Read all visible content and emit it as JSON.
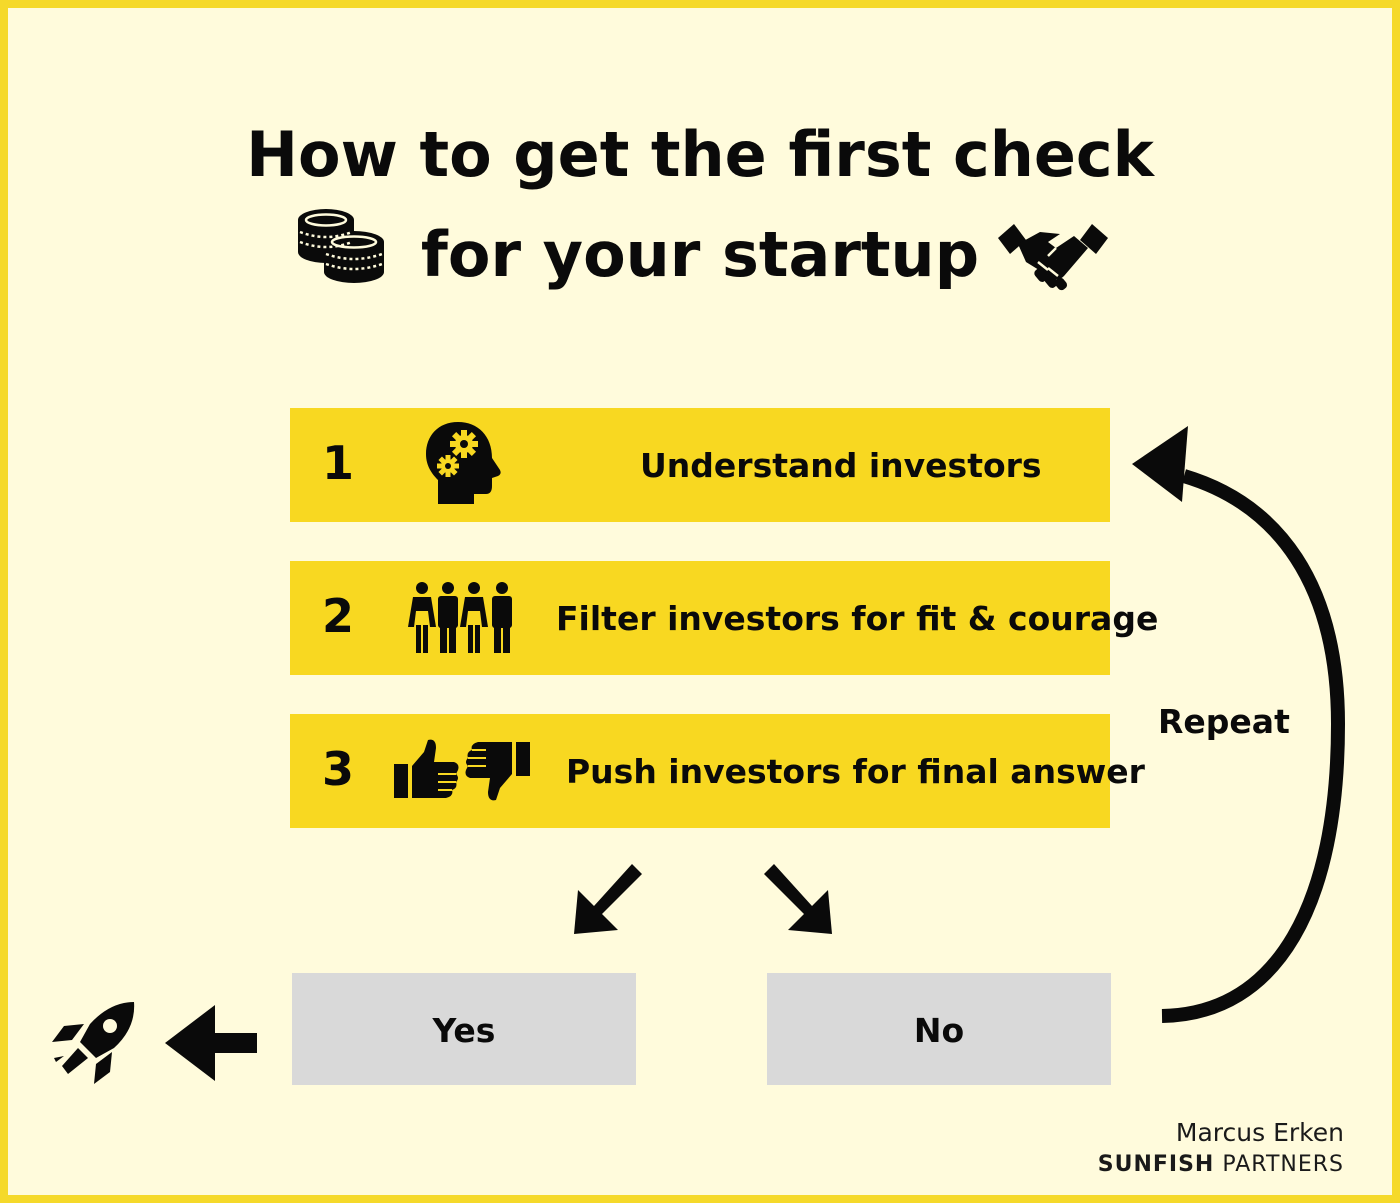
{
  "title": {
    "line1": "How to get the first check",
    "line2": "for your startup"
  },
  "steps": [
    {
      "number": "1",
      "label": "Understand investors",
      "icon": "head-gears-icon"
    },
    {
      "number": "2",
      "label": "Filter investors for fit & courage",
      "icon": "people-group-icon"
    },
    {
      "number": "3",
      "label": "Push investors for final answer",
      "icon": "thumbs-up-down-icon"
    }
  ],
  "answers": {
    "yes": "Yes",
    "no": "No"
  },
  "loop_label": "Repeat",
  "credit": {
    "author": "Marcus Erken",
    "company_bold": "SUNFISH",
    "company_rest": "PARTNERS"
  },
  "colors": {
    "border": "#f5d92a",
    "background": "#fffbdc",
    "step_fill": "#f8d821",
    "answer_fill": "#d9d9d9",
    "ink": "#0a0a0a"
  }
}
